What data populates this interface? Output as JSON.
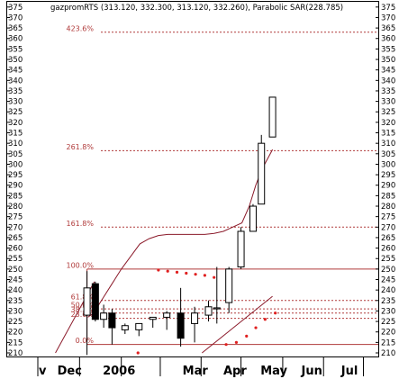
{
  "chart_data": {
    "type": "candlestick",
    "header": "gazpromRTS (313.120, 332.300, 313.120, 332.260), Parabolic SAR(228.785)",
    "ylim": [
      210,
      377.5
    ],
    "y_ticks": [
      210,
      215,
      220,
      225,
      230,
      235,
      240,
      245,
      250,
      255,
      260,
      265,
      270,
      275,
      280,
      285,
      290,
      295,
      300,
      305,
      310,
      315,
      320,
      325,
      330,
      335,
      340,
      345,
      350,
      355,
      360,
      365,
      370,
      375
    ],
    "x_labels": [
      {
        "label": "v",
        "week": 0.1
      },
      {
        "label": "Dec",
        "week": 2.1
      },
      {
        "label": "2006",
        "week": 7.0
      },
      {
        "label": "Mar",
        "week": 15.6
      },
      {
        "label": "Apr",
        "week": 20.0
      },
      {
        "label": "May",
        "week": 24.0
      },
      {
        "label": "Jun",
        "week": 28.4
      },
      {
        "label": "Jul",
        "week": 32.7
      }
    ],
    "x_separators": [
      0,
      4.5,
      9.0,
      13.2,
      17.6,
      21.9,
      26.4,
      30.8,
      35.1
    ],
    "x_range": [
      -3.3,
      36.7
    ],
    "fib_levels": [
      {
        "label": "0.0%",
        "value": 214
      },
      {
        "label": "23.6%",
        "value": 226.5
      },
      {
        "label": "38.2%",
        "value": 229
      },
      {
        "label": "50.0%",
        "value": 231
      },
      {
        "label": "61.8%",
        "value": 235
      },
      {
        "label": "100.0%",
        "value": 250
      },
      {
        "label": "161.8%",
        "value": 270
      },
      {
        "label": "261.8%",
        "value": 306.5
      },
      {
        "label": "423.6%",
        "value": 363
      }
    ],
    "fib_start_week": 5.3,
    "candles": [
      {
        "week": 5.3,
        "open": 228,
        "high": 249,
        "low": 209,
        "close": 241
      },
      {
        "week": 6.2,
        "open": 243,
        "high": 244,
        "low": 225,
        "close": 226
      },
      {
        "week": 7.1,
        "open": 226,
        "high": 233,
        "low": 222,
        "close": 229
      },
      {
        "week": 8.0,
        "open": 229,
        "high": 231,
        "low": 214,
        "close": 222
      },
      {
        "week": 9.4,
        "open": 221,
        "high": 224,
        "low": 219,
        "close": 223
      },
      {
        "week": 10.9,
        "open": 221,
        "high": 224,
        "low": 218,
        "close": 224
      },
      {
        "week": 12.4,
        "open": 226,
        "high": 227,
        "low": 222,
        "close": 227
      },
      {
        "week": 13.9,
        "open": 227,
        "high": 230,
        "low": 221,
        "close": 229
      },
      {
        "week": 15.4,
        "open": 229,
        "high": 241,
        "low": 213,
        "close": 217
      },
      {
        "week": 16.9,
        "open": 224,
        "high": 232,
        "low": 215,
        "close": 229
      },
      {
        "week": 18.4,
        "open": 228,
        "high": 235,
        "low": 225,
        "close": 232
      },
      {
        "week": 19.3,
        "open": 231,
        "high": 251,
        "low": 224,
        "close": 231.5
      },
      {
        "week": 20.6,
        "open": 234,
        "high": 251,
        "low": 229,
        "close": 250
      },
      {
        "week": 21.9,
        "open": 251,
        "high": 270,
        "low": 250,
        "close": 268
      },
      {
        "week": 23.2,
        "open": 268,
        "high": 281,
        "low": 268,
        "close": 280
      },
      {
        "week": 24.1,
        "open": 281,
        "high": 314,
        "low": 281,
        "close": 310
      },
      {
        "week": 25.3,
        "open": 313,
        "high": 332,
        "low": 313,
        "close": 332
      }
    ],
    "sar_points": [
      {
        "week": 10.8,
        "value": 210
      },
      {
        "week": 13.0,
        "value": 249.5
      },
      {
        "week": 14.0,
        "value": 249
      },
      {
        "week": 15.0,
        "value": 248.5
      },
      {
        "week": 16.0,
        "value": 248
      },
      {
        "week": 17.0,
        "value": 247.5
      },
      {
        "week": 18.0,
        "value": 247
      },
      {
        "week": 19.0,
        "value": 246
      },
      {
        "week": 20.3,
        "value": 214
      },
      {
        "week": 21.4,
        "value": 215
      },
      {
        "week": 22.5,
        "value": 218
      },
      {
        "week": 23.5,
        "value": 222
      },
      {
        "week": 24.5,
        "value": 226
      },
      {
        "week": 25.6,
        "value": 229
      }
    ],
    "ma_line": [
      {
        "week": 5.4,
        "value": 227
      },
      {
        "week": 6.0,
        "value": 229
      },
      {
        "week": 7.0,
        "value": 236
      },
      {
        "week": 8.0,
        "value": 243
      },
      {
        "week": 9.0,
        "value": 250
      },
      {
        "week": 10.0,
        "value": 256
      },
      {
        "week": 11.0,
        "value": 262
      },
      {
        "week": 12.0,
        "value": 264.5
      },
      {
        "week": 13.0,
        "value": 266
      },
      {
        "week": 14.0,
        "value": 266.5
      },
      {
        "week": 15.0,
        "value": 266.5
      },
      {
        "week": 16.0,
        "value": 266.5
      },
      {
        "week": 17.0,
        "value": 266.5
      },
      {
        "week": 18.0,
        "value": 266.5
      },
      {
        "week": 19.0,
        "value": 267
      },
      {
        "week": 20.0,
        "value": 268
      },
      {
        "week": 21.0,
        "value": 270
      },
      {
        "week": 22.0,
        "value": 272
      },
      {
        "week": 22.8,
        "value": 280
      },
      {
        "week": 23.5,
        "value": 290
      },
      {
        "week": 24.2,
        "value": 298
      },
      {
        "week": 25.3,
        "value": 307
      }
    ],
    "trend_lines": [
      {
        "from": {
          "week": 1.9,
          "value": 210
        },
        "to": {
          "week": 6.1,
          "value": 244
        }
      },
      {
        "from": {
          "week": 17.7,
          "value": 210
        },
        "to": {
          "week": 25.3,
          "value": 237
        }
      }
    ],
    "colors": {
      "fib": "#b03a3a",
      "ma": "#8b1a2a",
      "sar": "#e02020",
      "candle_up": "#ffffff",
      "candle_down": "#000000",
      "grid": "#000000"
    }
  }
}
